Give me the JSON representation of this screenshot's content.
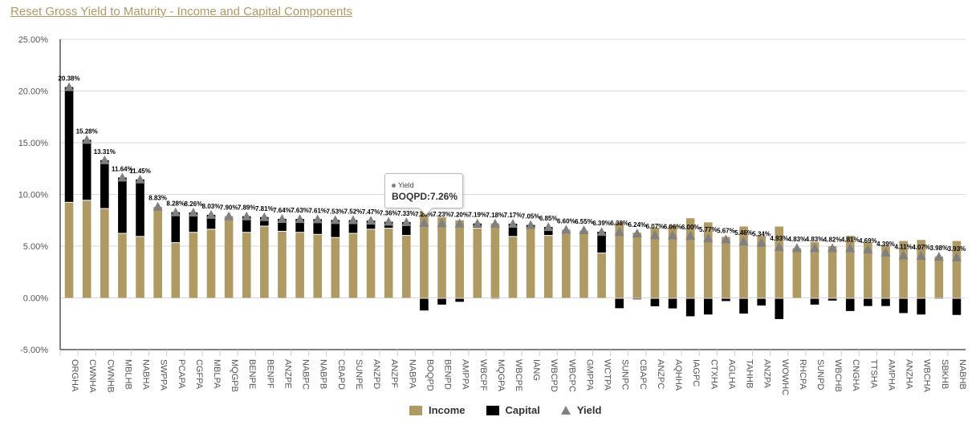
{
  "title": "Reset Gross Yield to Maturity - Income and Capital Components",
  "tooltip": {
    "series": "Yield",
    "label": "BOQPD:7.26%"
  },
  "legend": {
    "income": "Income",
    "capital": "Capital",
    "yield": "Yield"
  },
  "colors": {
    "income": "#b09a64",
    "capital": "#000000",
    "yield": "#808080",
    "grid": "#d8d8d8"
  },
  "chart_data": {
    "type": "bar",
    "stacked": true,
    "title": "Reset Gross Yield to Maturity - Income and Capital Components",
    "xlabel": "",
    "ylabel": "",
    "ylim": [
      -5,
      25
    ],
    "yticks": [
      -5,
      0,
      5,
      10,
      15,
      20,
      25
    ],
    "ytick_labels": [
      "-5.00%",
      "0.00%",
      "5.00%",
      "10.00%",
      "15.00%",
      "20.00%",
      "25.00%"
    ],
    "grid": true,
    "legend_position": "bottom-center",
    "categories": [
      "ORGHA",
      "CWNHA",
      "CWNHB",
      "MBLHB",
      "NABHA",
      "SWPPA",
      "PCAPA",
      "CGFPA",
      "MBLPA",
      "MQGPB",
      "BENPE",
      "BENPF",
      "ANZPE",
      "NABPC",
      "NABPB",
      "CBAPD",
      "SUNPE",
      "ANZPD",
      "ANZPF",
      "NABPA",
      "BOQPD",
      "BENPD",
      "AMPPA",
      "WBCPF",
      "MQGPA",
      "WBCPE",
      "IANG",
      "WBCPD",
      "WBCPC",
      "GMPPA",
      "WCTPA",
      "SUNPC",
      "CBAPC",
      "ANZPC",
      "AQHHA",
      "IAGPC",
      "CTXHA",
      "AGLHA",
      "TAHHB",
      "ANZPA",
      "WOWHC",
      "RHCPA",
      "SUNPD",
      "WBCHB",
      "CNGHA",
      "TTSHA",
      "AMPHA",
      "ANZHA",
      "WBCHA",
      "SBKHB",
      "NABHB"
    ],
    "series": [
      {
        "name": "Income",
        "type": "bar",
        "values": [
          9.2,
          9.4,
          8.6,
          6.2,
          5.9,
          8.8,
          5.3,
          6.3,
          6.6,
          7.9,
          6.3,
          6.9,
          6.4,
          6.3,
          6.1,
          5.8,
          6.2,
          6.6,
          6.7,
          6.0,
          8.4,
          7.8,
          7.5,
          6.7,
          7.2,
          5.9,
          6.7,
          6.0,
          6.6,
          6.5,
          4.3,
          7.3,
          6.3,
          6.8,
          7.0,
          7.7,
          7.3,
          5.9,
          6.9,
          6.0,
          6.9,
          4.8,
          5.4,
          5.0,
          6.0,
          5.4,
          5.1,
          5.5,
          5.6,
          4.0,
          5.5
        ]
      },
      {
        "name": "Capital",
        "type": "bar",
        "values": [
          11.18,
          5.88,
          4.71,
          5.44,
          5.55,
          0.03,
          2.98,
          1.96,
          1.43,
          0.0,
          1.59,
          0.91,
          1.24,
          1.33,
          1.51,
          1.73,
          1.32,
          0.87,
          0.66,
          1.33,
          -1.14,
          -0.57,
          -0.3,
          0.49,
          -0.02,
          1.27,
          0.35,
          0.85,
          0.0,
          0.05,
          2.09,
          -0.92,
          -0.06,
          -0.73,
          -0.94,
          -1.7,
          -1.53,
          -0.23,
          -1.44,
          -0.66,
          -1.97,
          0.03,
          -0.57,
          -0.18,
          -1.19,
          -0.71,
          -0.71,
          -1.39,
          -1.53,
          -0.02,
          -1.57
        ]
      },
      {
        "name": "Yield",
        "type": "marker",
        "values": [
          20.38,
          15.28,
          13.31,
          11.64,
          11.45,
          8.83,
          8.28,
          8.26,
          8.03,
          7.9,
          7.89,
          7.81,
          7.64,
          7.63,
          7.61,
          7.53,
          7.52,
          7.47,
          7.36,
          7.33,
          7.26,
          7.23,
          7.2,
          7.19,
          7.18,
          7.17,
          7.05,
          6.85,
          6.6,
          6.55,
          6.39,
          6.38,
          6.24,
          6.07,
          6.06,
          6.0,
          5.77,
          5.67,
          5.46,
          5.34,
          4.93,
          4.83,
          4.83,
          4.82,
          4.81,
          4.69,
          4.39,
          4.11,
          4.07,
          3.98,
          3.93
        ],
        "labels": [
          "20.38%",
          "15.28%",
          "13.31%",
          "11.64%",
          "11.45%",
          "8.83%",
          "8.28%",
          "8.26%",
          "8.03%",
          "7.90%",
          "7.89%",
          "7.81%",
          "7.64%",
          "7.63%",
          "7.61%",
          "7.53%",
          "7.52%",
          "7.47%",
          "7.36%",
          "7.33%",
          "7.26%",
          "7.23%",
          "7.20%",
          "7.19%",
          "7.18%",
          "7.17%",
          "7.05%",
          "6.85%",
          "6.60%",
          "6.55%",
          "6.39%",
          "6.38%",
          "6.24%",
          "6.07%",
          "6.06%",
          "6.00%",
          "5.77%",
          "5.67%",
          "5.46%",
          "5.34%",
          "4.93%",
          "4.83%",
          "4.83%",
          "4.82%",
          "4.81%",
          "4.69%",
          "4.39%",
          "4.11%",
          "4.07%",
          "3.98%",
          "3.93%"
        ]
      }
    ]
  }
}
